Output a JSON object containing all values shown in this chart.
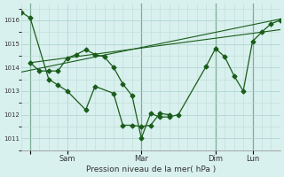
{
  "background_color": "#d8f0ee",
  "grid_color": "#c0dbd8",
  "line_color": "#1a5c1a",
  "xlabel": "Pression niveau de la mer( hPa )",
  "ylim": [
    1010.5,
    1016.7
  ],
  "yticks": [
    1011,
    1012,
    1013,
    1014,
    1015,
    1016
  ],
  "xlim": [
    0,
    28
  ],
  "xtick_positions": [
    1,
    5,
    13,
    21,
    25
  ],
  "xtick_labels": [
    "Sam",
    "Sam",
    "Mar",
    "Dim",
    "Lun"
  ],
  "vlines": [
    1,
    13,
    21,
    25
  ],
  "series1_x": [
    0,
    1,
    3,
    4,
    5,
    7,
    8,
    10,
    11,
    12,
    13,
    14,
    15,
    16
  ],
  "series1_y": [
    1016.35,
    1016.1,
    1013.5,
    1013.25,
    1013.0,
    1012.2,
    1013.2,
    1012.9,
    1011.55,
    1011.55,
    1011.5,
    1011.55,
    1012.05,
    1012.0
  ],
  "series2_x": [
    1,
    2,
    3,
    4,
    5,
    6,
    7,
    8,
    9,
    10,
    11,
    12,
    13,
    14,
    15,
    16,
    17,
    20,
    21,
    22,
    23,
    24,
    25,
    26,
    27,
    28
  ],
  "series2_y": [
    1014.2,
    1013.85,
    1013.85,
    1013.85,
    1014.4,
    1014.55,
    1014.75,
    1014.55,
    1014.45,
    1014.0,
    1013.3,
    1012.8,
    1011.0,
    1012.05,
    1011.9,
    1011.9,
    1012.0,
    1014.05,
    1014.8,
    1014.45,
    1013.65,
    1013.0,
    1015.1,
    1015.5,
    1015.85,
    1016.0
  ],
  "trend_x": [
    0,
    28
  ],
  "trend_y": [
    1013.8,
    1016.05
  ],
  "trend2_x": [
    1,
    28
  ],
  "trend2_y": [
    1014.2,
    1015.6
  ],
  "figsize": [
    3.2,
    2.0
  ],
  "dpi": 100
}
